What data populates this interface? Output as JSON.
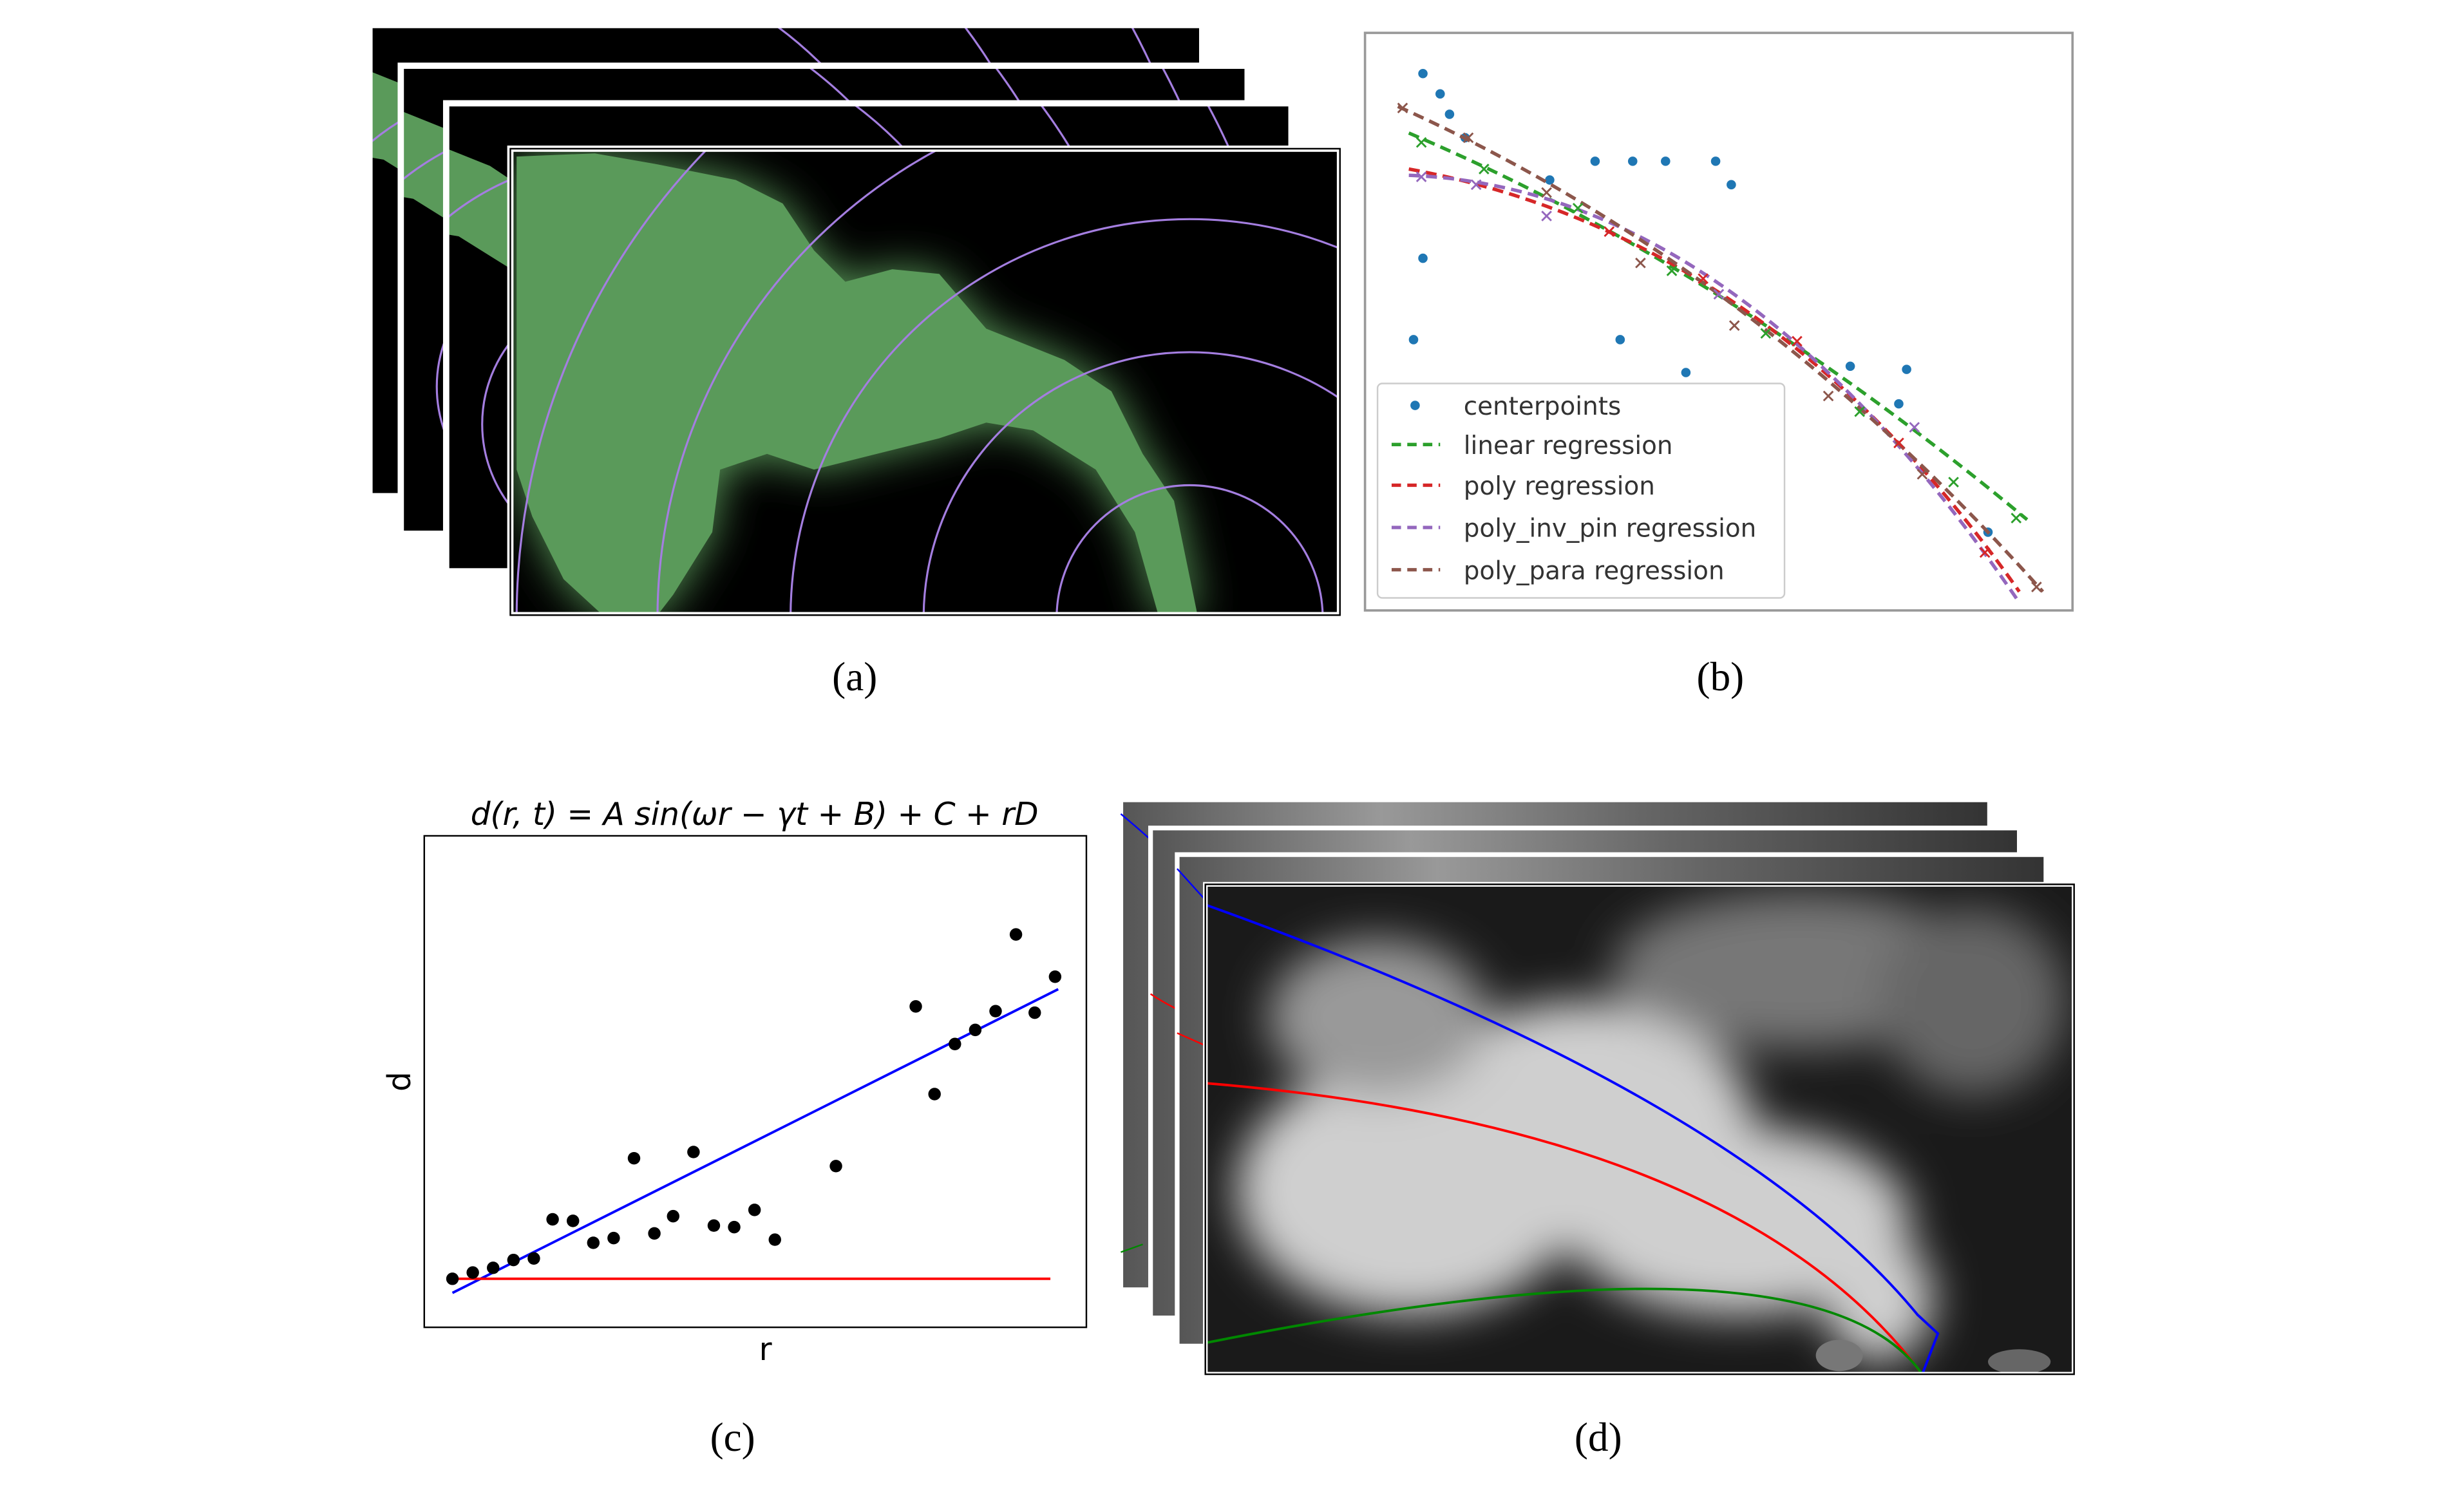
{
  "panels": [
    {
      "caption": "(a)"
    },
    {
      "caption": "(b)",
      "legend": [
        "centerpoints",
        "linear regression",
        "poly regression",
        "poly_inv_pin regression",
        "poly_para regression"
      ]
    },
    {
      "caption": "(c)",
      "title": "d(r, t) = A sin(ωr − γt + B) + C + rD",
      "xlabel": "r",
      "ylabel": "d"
    },
    {
      "caption": "(d)"
    }
  ]
}
